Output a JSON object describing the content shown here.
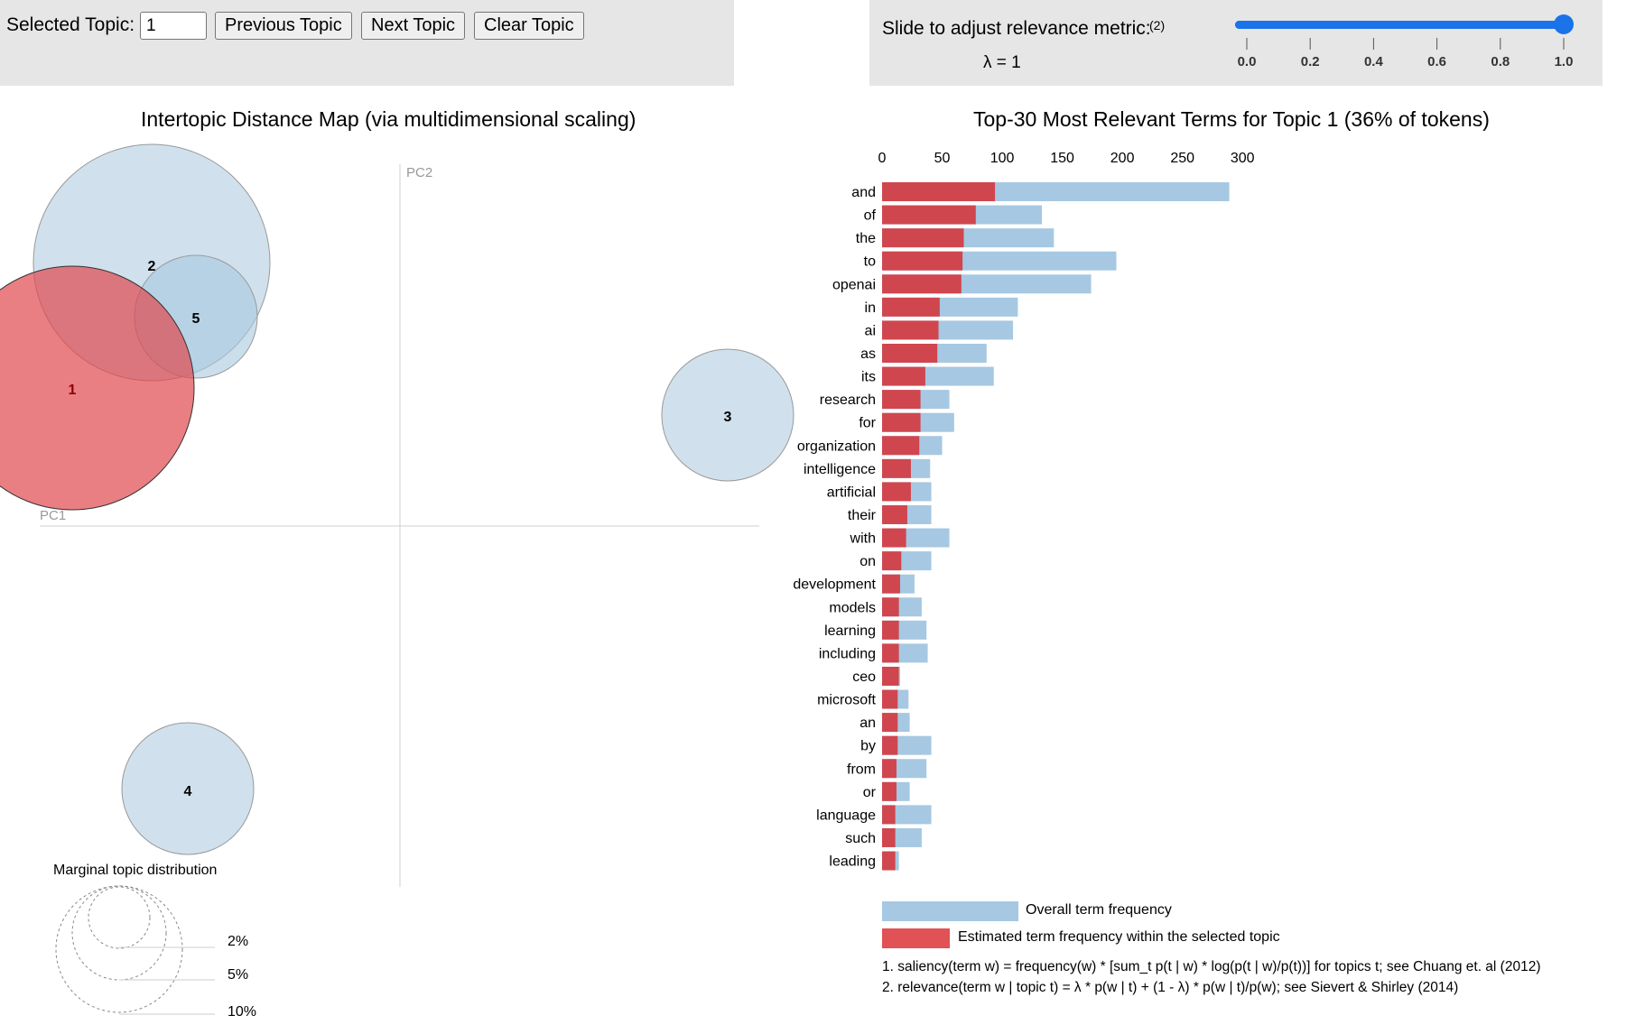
{
  "controls": {
    "selected_topic_label": "Selected Topic:",
    "selected_topic_value": "1",
    "previous_label": "Previous Topic",
    "next_label": "Next Topic",
    "clear_label": "Clear Topic"
  },
  "relevance": {
    "label": "Slide to adjust relevance metric:",
    "footnote_ref": "(2)",
    "lambda_text": "λ = 1",
    "lambda_value": 1,
    "ticks": [
      "0.0",
      "0.2",
      "0.4",
      "0.6",
      "0.8",
      "1.0"
    ]
  },
  "map": {
    "title": "Intertopic Distance Map (via multidimensional scaling)",
    "pc1_label": "PC1",
    "pc2_label": "PC2",
    "selected_color": "#e8777a",
    "unselected_color": "#a9c8df",
    "topics": [
      {
        "id": "1",
        "selected": true
      },
      {
        "id": "2",
        "selected": false
      },
      {
        "id": "3",
        "selected": false
      },
      {
        "id": "4",
        "selected": false
      },
      {
        "id": "5",
        "selected": false
      }
    ],
    "marginal_title": "Marginal topic distribution",
    "marginal_labels": [
      "2%",
      "5%",
      "10%"
    ]
  },
  "bars": {
    "title": "Top-30 Most Relevant Terms for Topic 1 (36% of tokens)",
    "axis_ticks": [
      0,
      50,
      100,
      150,
      200,
      250,
      300
    ],
    "overall_color": "#a6c8e2",
    "topic_color": "#d0464f",
    "legend_overall": "Overall term frequency",
    "legend_topic": "Estimated term frequency within the selected topic",
    "footnote1": "1. saliency(term w) = frequency(w) * [sum_t p(t | w) * log(p(t | w)/p(t))] for topics t; see Chuang et. al (2012)",
    "footnote2": "2. relevance(term w | topic t) = λ * p(w | t) + (1 - λ) * p(w | t)/p(w); see Sievert & Shirley (2014)"
  },
  "chart_data": {
    "type": "bar",
    "orientation": "horizontal",
    "title": "Top-30 Most Relevant Terms for Topic 1 (36% of tokens)",
    "xlim": [
      0,
      300
    ],
    "categories": [
      "and",
      "of",
      "the",
      "to",
      "openai",
      "in",
      "ai",
      "as",
      "its",
      "research",
      "for",
      "organization",
      "intelligence",
      "artificial",
      "their",
      "with",
      "on",
      "development",
      "models",
      "learning",
      "including",
      "ceo",
      "microsoft",
      "an",
      "by",
      "from",
      "or",
      "language",
      "such",
      "leading"
    ],
    "series": [
      {
        "name": "Overall term frequency",
        "values": [
          289,
          133,
          143,
          195,
          174,
          113,
          109,
          87,
          93,
          56,
          60,
          50,
          40,
          41,
          41,
          56,
          41,
          27,
          33,
          37,
          38,
          15,
          22,
          23,
          41,
          37,
          23,
          41,
          33,
          14
        ]
      },
      {
        "name": "Estimated term frequency within the selected topic",
        "values": [
          94,
          78,
          68,
          67,
          66,
          48,
          47,
          46,
          36,
          32,
          32,
          31,
          24,
          24,
          21,
          20,
          16,
          15,
          14,
          14,
          14,
          14,
          13,
          13,
          13,
          12,
          12,
          11,
          11,
          11
        ]
      }
    ]
  }
}
